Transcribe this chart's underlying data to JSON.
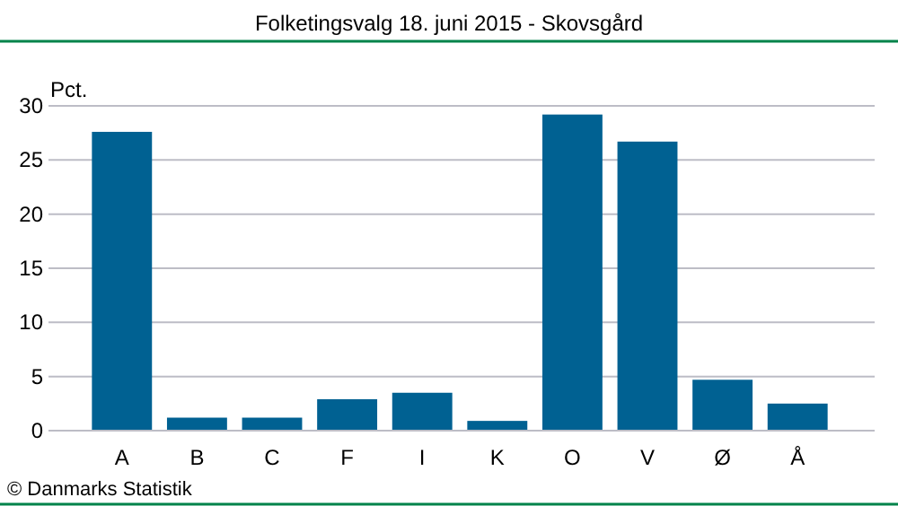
{
  "chart_data": {
    "type": "bar",
    "title": "Folketingsvalg 18. juni 2015 - Skovsgård",
    "ylabel": "Pct.",
    "categories": [
      "A",
      "B",
      "C",
      "F",
      "I",
      "K",
      "O",
      "V",
      "Ø",
      "Å"
    ],
    "values": [
      27.6,
      1.2,
      1.2,
      2.9,
      3.5,
      0.9,
      29.2,
      26.7,
      4.7,
      2.5
    ],
    "color": "#006192",
    "ylim": [
      0,
      30
    ],
    "yticks": [
      0,
      5,
      10,
      15,
      20,
      25,
      30
    ],
    "grid": "y",
    "annotations": [
      "© Danmarks Statistik"
    ]
  }
}
